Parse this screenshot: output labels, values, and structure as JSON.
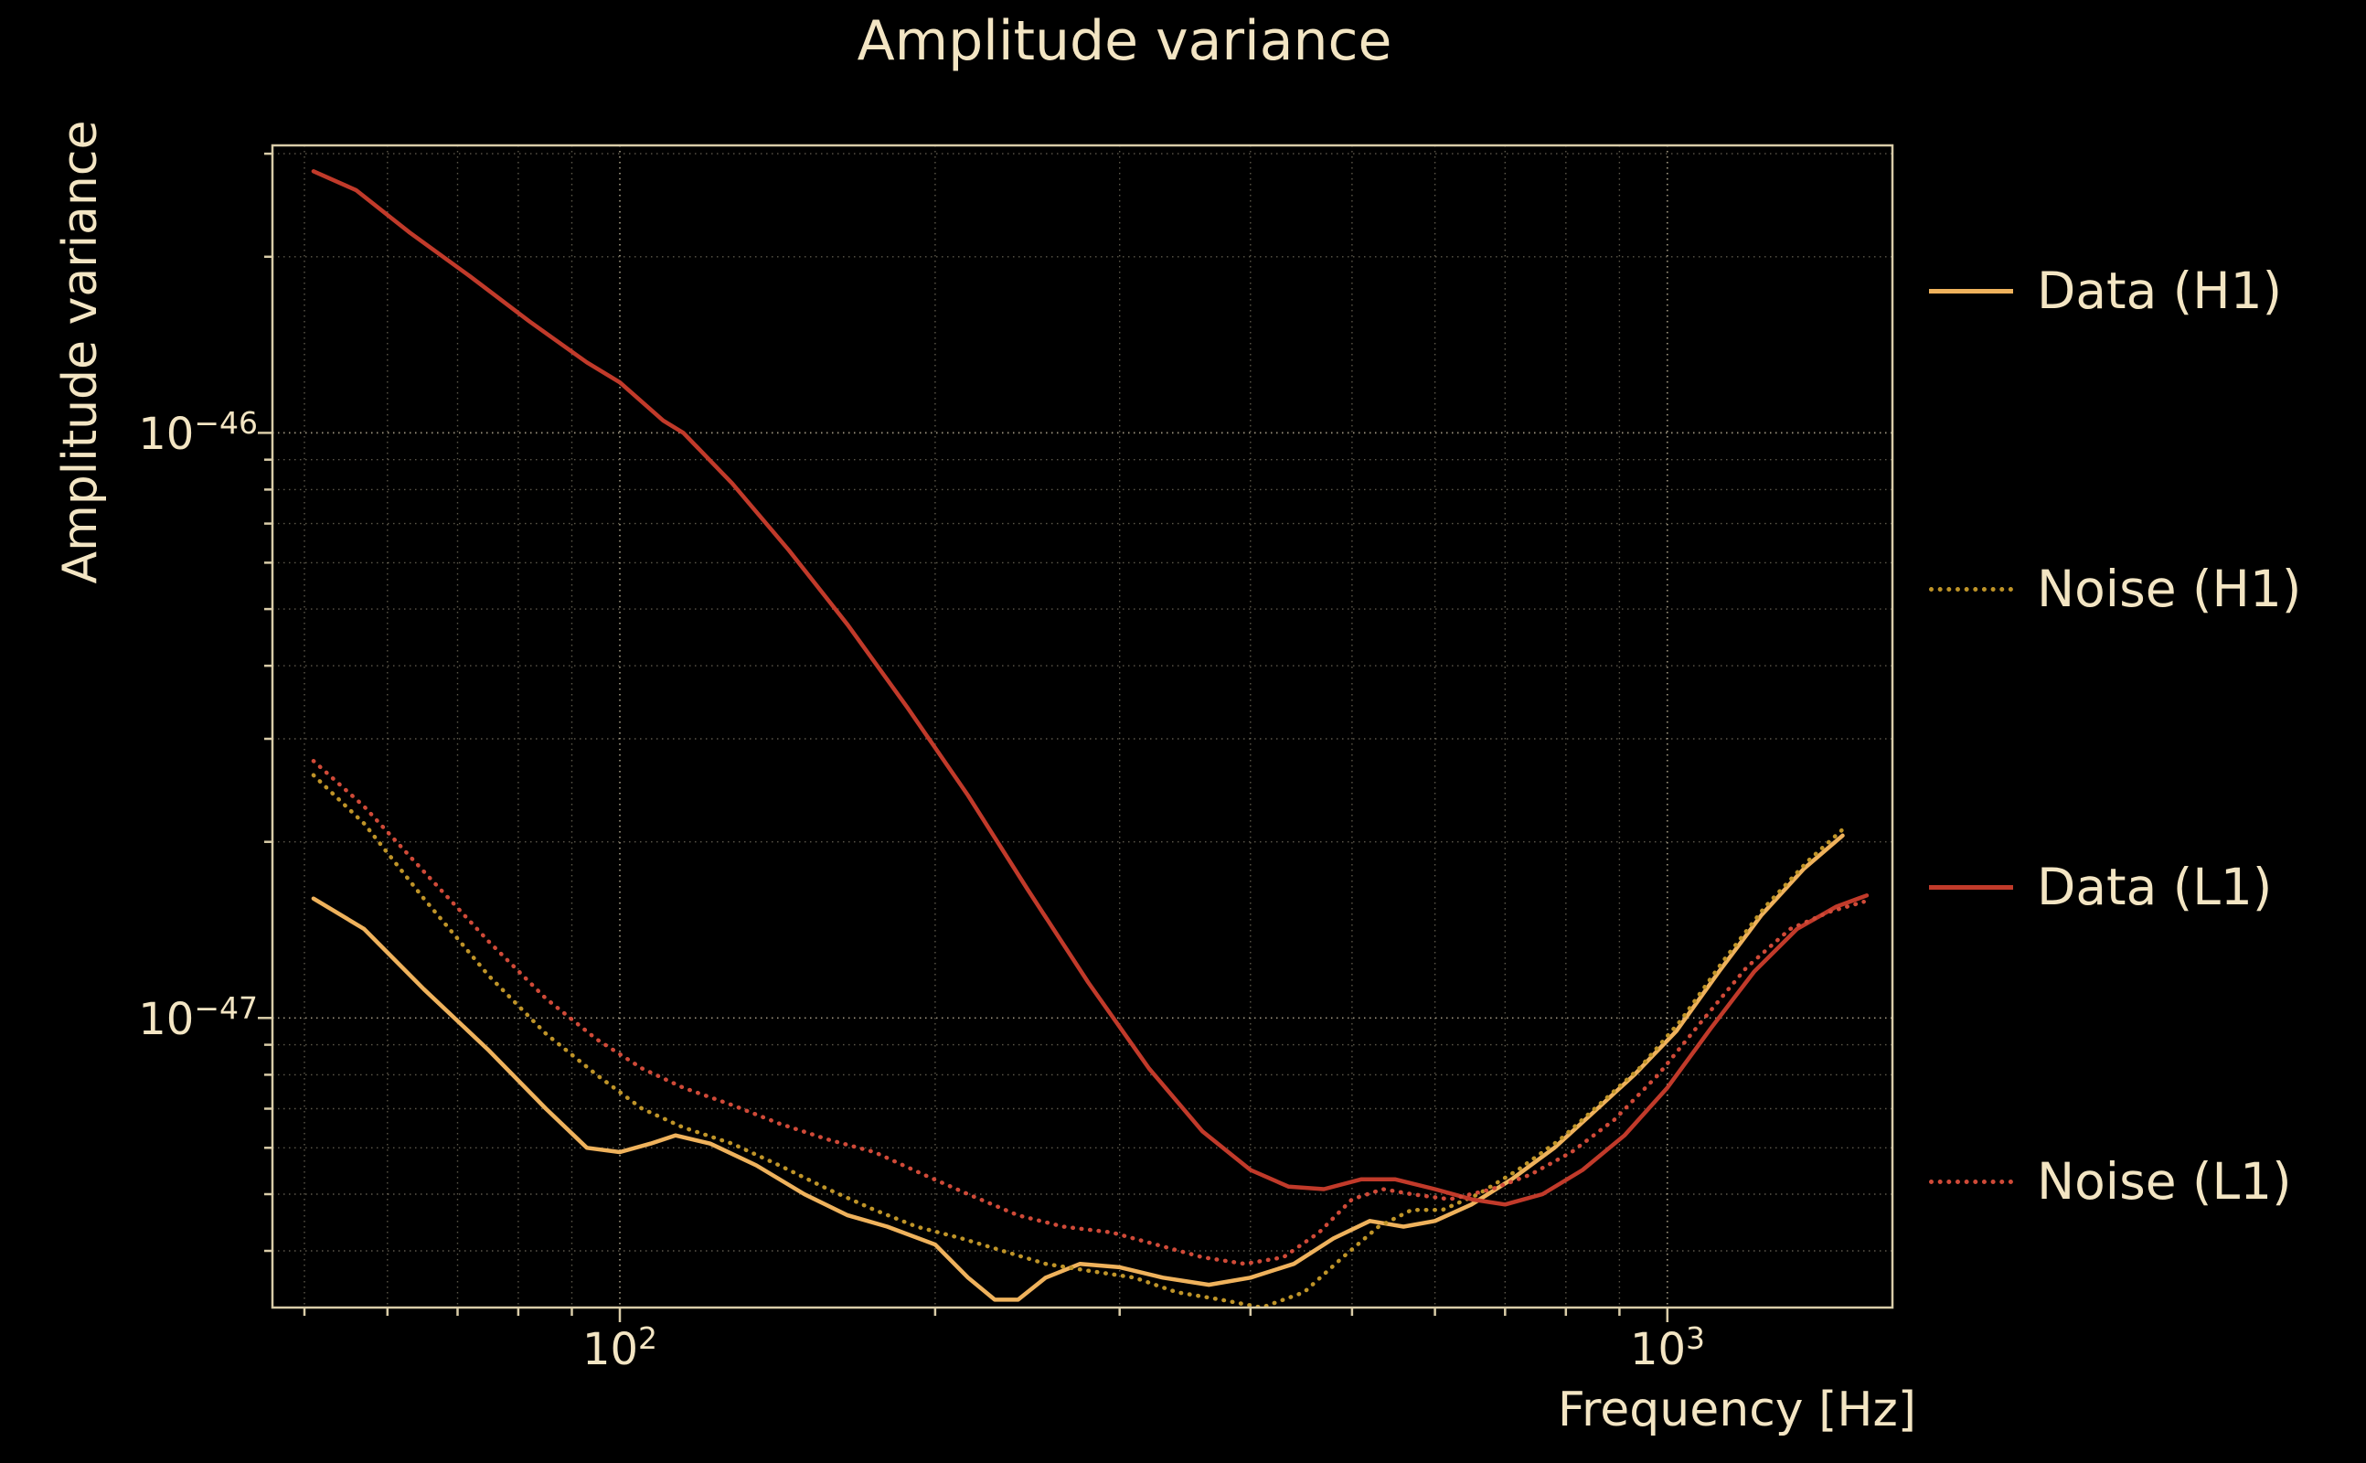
{
  "chart_data": {
    "type": "line",
    "title": "Amplitude variance",
    "xlabel": "Frequency [Hz]",
    "ylabel": "Amplitude variance",
    "xscale": "log",
    "yscale": "log",
    "xlim": [
      46.6,
      1640
    ],
    "ylim": [
      3.2e-48,
      3.1e-46
    ],
    "grid": true,
    "background_color": "#000000",
    "text_color": "#f3e5c3",
    "frame_color": "#d9cca8",
    "x_ticks_major": [
      {
        "value": 100,
        "base": "10",
        "exp": "2"
      },
      {
        "value": 1000,
        "base": "10",
        "exp": "3"
      }
    ],
    "y_ticks_major": [
      {
        "value": 1e-46,
        "base": "10",
        "exp": "−46"
      },
      {
        "value": 1e-47,
        "base": "10",
        "exp": "−47"
      }
    ],
    "x_grid_minor": [
      50,
      60,
      70,
      80,
      90,
      200,
      300,
      400,
      500,
      600,
      700,
      800,
      900
    ],
    "y_grid_minor": [
      4e-48,
      5e-48,
      6e-48,
      7e-48,
      8e-48,
      9e-48,
      2e-47,
      3e-47,
      4e-47,
      5e-47,
      6e-47,
      7e-47,
      8e-47,
      9e-47,
      2e-46,
      3e-46
    ],
    "series": [
      {
        "name": "Data (H1)",
        "color": "#efb25c",
        "style": "solid",
        "points": [
          [
            51,
            1.6e-47
          ],
          [
            57,
            1.42e-47
          ],
          [
            65,
            1.12e-47
          ],
          [
            75,
            8.8e-48
          ],
          [
            85,
            7e-48
          ],
          [
            93,
            6e-48
          ],
          [
            100,
            5.9e-48
          ],
          [
            107,
            6.1e-48
          ],
          [
            113,
            6.3e-48
          ],
          [
            122,
            6.1e-48
          ],
          [
            135,
            5.6e-48
          ],
          [
            150,
            5e-48
          ],
          [
            165,
            4.6e-48
          ],
          [
            180,
            4.4e-48
          ],
          [
            200,
            4.1e-48
          ],
          [
            215,
            3.6e-48
          ],
          [
            228,
            3.3e-48
          ],
          [
            240,
            3.3e-48
          ],
          [
            255,
            3.6e-48
          ],
          [
            275,
            3.8e-48
          ],
          [
            300,
            3.75e-48
          ],
          [
            330,
            3.6e-48
          ],
          [
            365,
            3.5e-48
          ],
          [
            400,
            3.6e-48
          ],
          [
            440,
            3.8e-48
          ],
          [
            480,
            4.2e-48
          ],
          [
            520,
            4.5e-48
          ],
          [
            560,
            4.4e-48
          ],
          [
            600,
            4.5e-48
          ],
          [
            650,
            4.8e-48
          ],
          [
            710,
            5.3e-48
          ],
          [
            780,
            6e-48
          ],
          [
            850,
            6.9e-48
          ],
          [
            930,
            8e-48
          ],
          [
            1020,
            9.5e-48
          ],
          [
            1120,
            1.2e-47
          ],
          [
            1230,
            1.5e-47
          ],
          [
            1350,
            1.8e-47
          ],
          [
            1470,
            2.05e-47
          ]
        ]
      },
      {
        "name": "Noise (H1)",
        "color": "#bf9428",
        "style": "dotted",
        "points": [
          [
            51,
            2.6e-47
          ],
          [
            57,
            2.15e-47
          ],
          [
            65,
            1.6e-47
          ],
          [
            75,
            1.18e-47
          ],
          [
            85,
            9.4e-48
          ],
          [
            95,
            8e-48
          ],
          [
            105,
            7e-48
          ],
          [
            115,
            6.5e-48
          ],
          [
            128,
            6.1e-48
          ],
          [
            142,
            5.6e-48
          ],
          [
            158,
            5.1e-48
          ],
          [
            175,
            4.7e-48
          ],
          [
            192,
            4.4e-48
          ],
          [
            212,
            4.2e-48
          ],
          [
            232,
            4e-48
          ],
          [
            255,
            3.8e-48
          ],
          [
            280,
            3.7e-48
          ],
          [
            310,
            3.6e-48
          ],
          [
            340,
            3.4e-48
          ],
          [
            375,
            3.3e-48
          ],
          [
            410,
            3.2e-48
          ],
          [
            450,
            3.4e-48
          ],
          [
            490,
            3.9e-48
          ],
          [
            530,
            4.4e-48
          ],
          [
            570,
            4.7e-48
          ],
          [
            610,
            4.7e-48
          ],
          [
            660,
            5e-48
          ],
          [
            720,
            5.5e-48
          ],
          [
            790,
            6.2e-48
          ],
          [
            860,
            7.1e-48
          ],
          [
            940,
            8.2e-48
          ],
          [
            1030,
            9.9e-48
          ],
          [
            1130,
            1.25e-47
          ],
          [
            1240,
            1.55e-47
          ],
          [
            1360,
            1.85e-47
          ],
          [
            1470,
            2.1e-47
          ]
        ]
      },
      {
        "name": "Data (L1)",
        "color": "#c13a2a",
        "style": "solid",
        "points": [
          [
            51,
            2.8e-46
          ],
          [
            56,
            2.6e-46
          ],
          [
            63,
            2.2e-46
          ],
          [
            72,
            1.85e-46
          ],
          [
            82,
            1.55e-46
          ],
          [
            93,
            1.32e-46
          ],
          [
            100,
            1.22e-46
          ],
          [
            110,
            1.05e-46
          ],
          [
            115,
            1e-46
          ],
          [
            128,
            8.2e-47
          ],
          [
            145,
            6.3e-47
          ],
          [
            165,
            4.7e-47
          ],
          [
            188,
            3.4e-47
          ],
          [
            215,
            2.4e-47
          ],
          [
            245,
            1.66e-47
          ],
          [
            280,
            1.15e-47
          ],
          [
            320,
            8.2e-48
          ],
          [
            360,
            6.4e-48
          ],
          [
            400,
            5.5e-48
          ],
          [
            435,
            5.15e-48
          ],
          [
            470,
            5.1e-48
          ],
          [
            510,
            5.3e-48
          ],
          [
            550,
            5.3e-48
          ],
          [
            600,
            5.1e-48
          ],
          [
            650,
            4.9e-48
          ],
          [
            700,
            4.8e-48
          ],
          [
            760,
            5e-48
          ],
          [
            830,
            5.5e-48
          ],
          [
            910,
            6.3e-48
          ],
          [
            1000,
            7.6e-48
          ],
          [
            1100,
            9.6e-48
          ],
          [
            1210,
            1.2e-47
          ],
          [
            1330,
            1.42e-47
          ],
          [
            1450,
            1.55e-47
          ],
          [
            1550,
            1.62e-47
          ]
        ]
      },
      {
        "name": "Noise (L1)",
        "color": "#d04a38",
        "style": "dotted",
        "points": [
          [
            51,
            2.75e-47
          ],
          [
            57,
            2.3e-47
          ],
          [
            65,
            1.78e-47
          ],
          [
            75,
            1.35e-47
          ],
          [
            85,
            1.08e-47
          ],
          [
            95,
            9.2e-48
          ],
          [
            105,
            8.2e-48
          ],
          [
            115,
            7.6e-48
          ],
          [
            128,
            7.1e-48
          ],
          [
            142,
            6.6e-48
          ],
          [
            158,
            6.2e-48
          ],
          [
            175,
            5.9e-48
          ],
          [
            195,
            5.4e-48
          ],
          [
            215,
            5e-48
          ],
          [
            240,
            4.6e-48
          ],
          [
            265,
            4.4e-48
          ],
          [
            295,
            4.3e-48
          ],
          [
            325,
            4.1e-48
          ],
          [
            360,
            3.9e-48
          ],
          [
            395,
            3.8e-48
          ],
          [
            430,
            3.9e-48
          ],
          [
            465,
            4.3e-48
          ],
          [
            500,
            4.9e-48
          ],
          [
            535,
            5.1e-48
          ],
          [
            570,
            5e-48
          ],
          [
            620,
            4.9e-48
          ],
          [
            680,
            5.1e-48
          ],
          [
            740,
            5.4e-48
          ],
          [
            810,
            5.9e-48
          ],
          [
            890,
            6.7e-48
          ],
          [
            980,
            8e-48
          ],
          [
            1080,
            9.9e-48
          ],
          [
            1190,
            1.22e-47
          ],
          [
            1310,
            1.42e-47
          ],
          [
            1430,
            1.52e-47
          ],
          [
            1540,
            1.58e-47
          ]
        ]
      }
    ],
    "legend": {
      "position": "right",
      "items": [
        {
          "label": "Data (H1)"
        },
        {
          "label": "Noise (H1)"
        },
        {
          "label": "Data (L1)"
        },
        {
          "label": "Noise (L1)"
        }
      ]
    }
  }
}
